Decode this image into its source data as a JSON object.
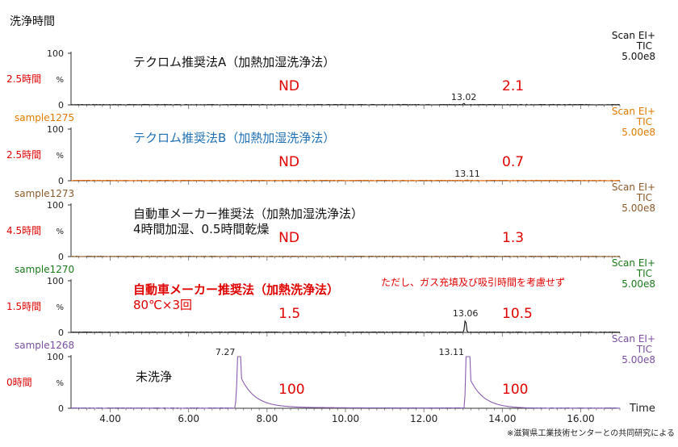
{
  "header_label": "洗浄時間",
  "footnote": "※滋賀県工業技術センターとの共同研究による",
  "x_axis": {
    "label": "Time",
    "min": 3.0,
    "max": 17.0,
    "ticks": [
      4.0,
      6.0,
      8.0,
      10.0,
      12.0,
      14.0,
      16.0
    ],
    "tick_labels": [
      "4.00",
      "6.00",
      "8.00",
      "10.00",
      "12.00",
      "14.00",
      "16.00"
    ]
  },
  "chart_data": [
    {
      "type": "line",
      "panel_index": 0,
      "sample": "",
      "title_lines": [
        "テクロム推奨法A（加熱加湿洗浄法）"
      ],
      "title_color": "#111111",
      "trace_color": "#222222",
      "wash_time": "2.5時間",
      "wash_time_color": "#e00000",
      "scan_label": "Scan EI+",
      "tic_label": "TIC",
      "scale_label": "5.00e8",
      "label_color": "#111111",
      "y_ticks": [
        "100",
        "%",
        "0"
      ],
      "ylim": [
        0,
        100
      ],
      "peaks": [
        {
          "x": 13.02,
          "y": 3,
          "label": "13.02"
        }
      ],
      "results": [
        {
          "x_time": 8.5,
          "text": "ND"
        },
        {
          "x_time": 14.2,
          "text": "2.1"
        }
      ]
    },
    {
      "type": "line",
      "panel_index": 1,
      "sample": "sample1275",
      "sample_color": "#e07b00",
      "title_lines": [
        "テクロム推奨法B（加熱加湿洗浄法）"
      ],
      "title_color": "#1f6fb4",
      "trace_color": "#e06000",
      "wash_time": "2.5時間",
      "wash_time_color": "#e00000",
      "scan_label": "Scan EI+",
      "tic_label": "TIC",
      "scale_label": "5.00e8",
      "label_color": "#e07b00",
      "y_ticks": [
        "100",
        "%",
        "0"
      ],
      "ylim": [
        0,
        100
      ],
      "peaks": [
        {
          "x": 13.11,
          "y": 1.5,
          "label": "13.11"
        }
      ],
      "results": [
        {
          "x_time": 8.5,
          "text": "ND"
        },
        {
          "x_time": 14.2,
          "text": "0.7"
        }
      ]
    },
    {
      "type": "line",
      "panel_index": 2,
      "sample": "sample1273",
      "sample_color": "#8b5a2b",
      "title_lines": [
        "自動車メーカー推奨法（加熱加湿洗浄法）",
        "4時間加湿、0.5時間乾燥"
      ],
      "title_color": "#111111",
      "trace_color": "#8b5a2b",
      "wash_time": "4.5時間",
      "wash_time_color": "#e00000",
      "scan_label": "Scan EI+",
      "tic_label": "TIC",
      "scale_label": "5.00e8",
      "label_color": "#8b5a2b",
      "y_ticks": [
        "100",
        "%",
        "0"
      ],
      "ylim": [
        0,
        100
      ],
      "peaks": [
        {
          "x": 13.1,
          "y": 1.5,
          "label": ""
        }
      ],
      "results": [
        {
          "x_time": 8.5,
          "text": "ND"
        },
        {
          "x_time": 14.2,
          "text": "1.3"
        }
      ]
    },
    {
      "type": "line",
      "panel_index": 3,
      "sample": "sample1270",
      "sample_color": "#1a7a1a",
      "title_lines": [
        "自動車メーカー推奨法（加熱洗浄法）",
        "80℃×3回"
      ],
      "title_color": "#e00000",
      "aside_note": "ただし、ガス充填及び吸引時間を考慮せず",
      "trace_color": "#111111",
      "wash_time": "1.5時間",
      "wash_time_color": "#e00000",
      "scan_label": "Scan EI+",
      "tic_label": "TIC",
      "scale_label": "5.00e8",
      "label_color": "#1a7a1a",
      "y_ticks": [
        "100",
        "%",
        "0"
      ],
      "ylim": [
        0,
        100
      ],
      "peaks": [
        {
          "x": 13.06,
          "y": 25,
          "label": "13.06"
        }
      ],
      "results": [
        {
          "x_time": 8.5,
          "text": "1.5"
        },
        {
          "x_time": 14.2,
          "text": "10.5"
        }
      ]
    },
    {
      "type": "line",
      "panel_index": 4,
      "sample": "sample1268",
      "sample_color": "#7a4fa0",
      "title_lines": [
        "未洗浄"
      ],
      "title_color": "#111111",
      "trace_color": "#8a5cb0",
      "wash_time": "0時間",
      "wash_time_color": "#e00000",
      "scan_label": "Scan EI+",
      "tic_label": "TIC",
      "scale_label": "5.00e8",
      "label_color": "#7a4fa0",
      "y_ticks": [
        "100",
        "%",
        "0"
      ],
      "ylim": [
        0,
        100
      ],
      "peaks": [
        {
          "x": 7.27,
          "y": 100,
          "label": "7.27"
        },
        {
          "x": 13.11,
          "y": 100,
          "label": "13.11"
        }
      ],
      "results": [
        {
          "x_time": 8.5,
          "text": "100"
        },
        {
          "x_time": 14.2,
          "text": "100"
        }
      ]
    }
  ]
}
